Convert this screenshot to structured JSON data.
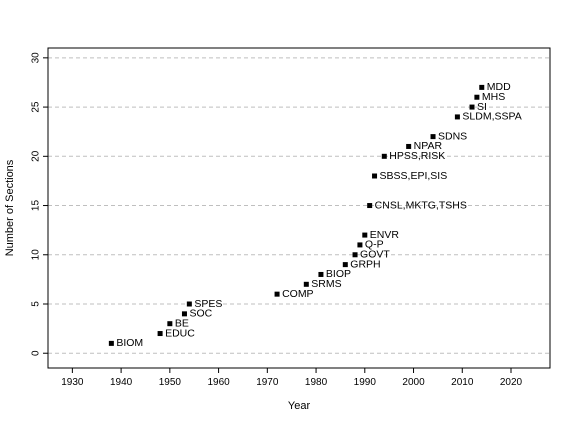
{
  "chart_data": {
    "type": "scatter",
    "title": "",
    "xlabel": "Year",
    "ylabel": "Number of Sections",
    "xlim": [
      1925,
      2028
    ],
    "ylim": [
      -1.5,
      31
    ],
    "x_ticks": [
      1930,
      1940,
      1950,
      1960,
      1970,
      1980,
      1990,
      2000,
      2010,
      2020
    ],
    "y_ticks": [
      0,
      5,
      10,
      15,
      20,
      25,
      30
    ],
    "grid": "horizontal dashed",
    "legend": "none",
    "marker_color": "#000000",
    "grid_color": "#bfbfbf",
    "points": [
      {
        "x": 1938,
        "y": 1,
        "label": "BIOM"
      },
      {
        "x": 1948,
        "y": 2,
        "label": "EDUC"
      },
      {
        "x": 1950,
        "y": 3,
        "label": "BE"
      },
      {
        "x": 1953,
        "y": 4,
        "label": "SOC"
      },
      {
        "x": 1954,
        "y": 5,
        "label": "SPES"
      },
      {
        "x": 1972,
        "y": 6,
        "label": "COMP"
      },
      {
        "x": 1978,
        "y": 7,
        "label": "SRMS"
      },
      {
        "x": 1981,
        "y": 8,
        "label": "BIOP"
      },
      {
        "x": 1986,
        "y": 9,
        "label": "GRPH"
      },
      {
        "x": 1988,
        "y": 10,
        "label": "GOVT"
      },
      {
        "x": 1989,
        "y": 11,
        "label": "Q-P"
      },
      {
        "x": 1990,
        "y": 12,
        "label": "ENVR"
      },
      {
        "x": 1991,
        "y": 15,
        "label": "CNSL,MKTG,TSHS"
      },
      {
        "x": 1992,
        "y": 18,
        "label": "SBSS,EPI,SIS"
      },
      {
        "x": 1994,
        "y": 20,
        "label": "HPSS,RISK"
      },
      {
        "x": 1999,
        "y": 21,
        "label": "NPAR"
      },
      {
        "x": 2004,
        "y": 22,
        "label": "SDNS"
      },
      {
        "x": 2009,
        "y": 24,
        "label": "SLDM,SSPA"
      },
      {
        "x": 2012,
        "y": 25,
        "label": "SI"
      },
      {
        "x": 2013,
        "y": 26,
        "label": "MHS"
      },
      {
        "x": 2014,
        "y": 27,
        "label": "MDD"
      }
    ]
  }
}
